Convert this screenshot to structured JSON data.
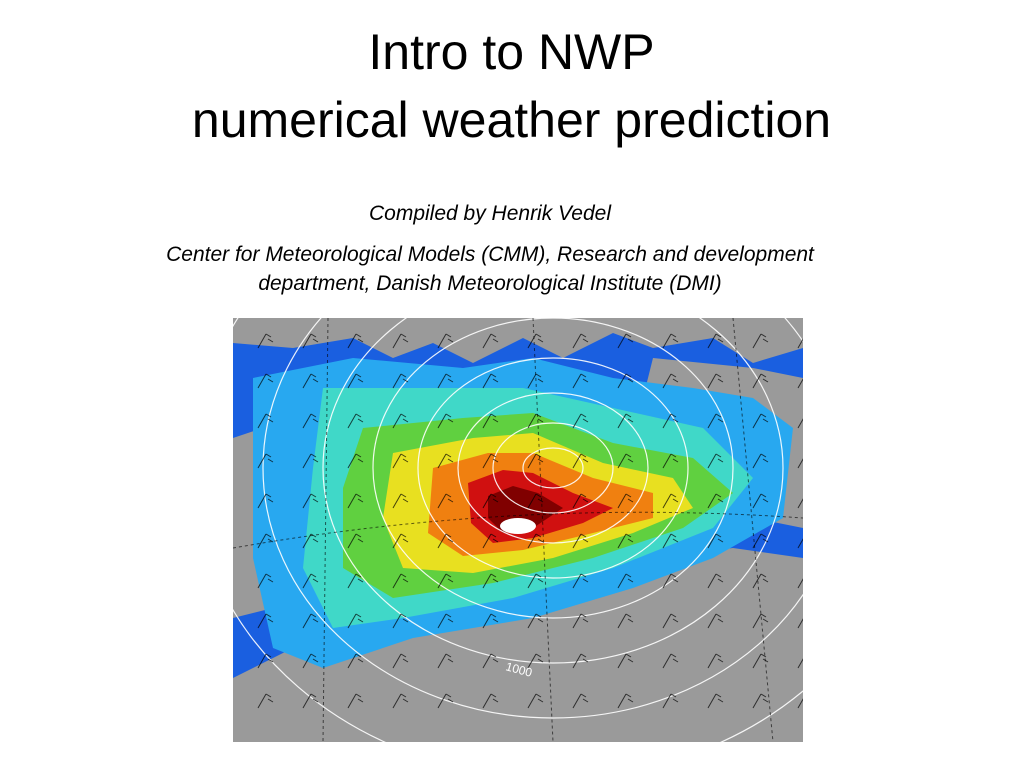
{
  "slide": {
    "title_line1": "Intro to NWP",
    "title_line2": "numerical weather prediction",
    "compiled_by": "Compiled by Henrik Vedel",
    "affiliation_line1": "Center for Meteorological Models (CMM), Research and development",
    "affiliation_line2": "department, Danish Meteorological Institute (DMI)"
  },
  "map": {
    "isobar_label": "1000",
    "colors": {
      "land": "#9a9a9a",
      "calm": "#1a5fe0",
      "light": "#28a8f0",
      "moderate": "#40d8c8",
      "fresh": "#60d040",
      "strong": "#e8e020",
      "gale": "#f08010",
      "storm": "#d01010",
      "violent": "#800000",
      "isobar": "#ffffff"
    }
  }
}
